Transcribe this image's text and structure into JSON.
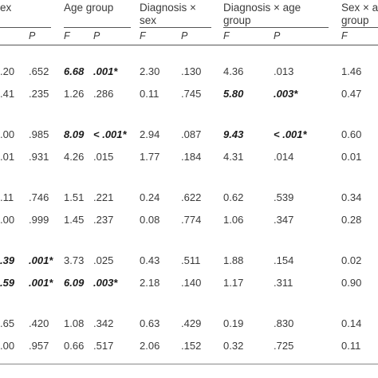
{
  "headers": {
    "sex": "ex",
    "age_group": "Age group",
    "diag_sex_1": "Diagnosis ×",
    "diag_sex_2": "sex",
    "diag_age_1": "Diagnosis × age",
    "diag_age_2": "group",
    "sex_age_1": "Sex × a",
    "sex_age_2": "group"
  },
  "subheaders": {
    "c1": "P",
    "c2": "F",
    "c3": "P",
    "c4": "F",
    "c5": "P",
    "c6": "F",
    "c7": "P",
    "c8": "F"
  },
  "rows": [
    {
      "cells": [
        ".20",
        ".652",
        "6.68",
        ".001*",
        "2.30",
        ".130",
        "4.36",
        ".013",
        "1.46"
      ],
      "bold": [
        2,
        3
      ]
    },
    {
      "cells": [
        ".41",
        ".235",
        "1.26",
        ".286",
        "0.11",
        ".745",
        "5.80",
        ".003*",
        "0.47"
      ],
      "bold": [
        6,
        7
      ]
    },
    {
      "cells": [
        ".00",
        ".985",
        "8.09",
        "< .001*",
        "2.94",
        ".087",
        "9.43",
        "< .001*",
        "0.60"
      ],
      "bold": [
        2,
        3,
        6,
        7
      ]
    },
    {
      "cells": [
        ".01",
        ".931",
        "4.26",
        ".015",
        "1.77",
        ".184",
        "4.31",
        ".014",
        "0.01"
      ],
      "bold": []
    },
    {
      "cells": [
        ".11",
        ".746",
        "1.51",
        ".221",
        "0.24",
        ".622",
        "0.62",
        ".539",
        "0.34"
      ],
      "bold": []
    },
    {
      "cells": [
        ".00",
        ".999",
        "1.45",
        ".237",
        "0.08",
        ".774",
        "1.06",
        ".347",
        "0.28"
      ],
      "bold": []
    },
    {
      "cells": [
        ".39",
        ".001*",
        "3.73",
        ".025",
        "0.43",
        ".511",
        "1.88",
        ".154",
        "0.02"
      ],
      "bold": [
        0,
        1
      ]
    },
    {
      "cells": [
        ".59",
        ".001*",
        "6.09",
        ".003*",
        "2.18",
        ".140",
        "1.17",
        ".311",
        "0.90"
      ],
      "bold": [
        0,
        1,
        2,
        3
      ]
    },
    {
      "cells": [
        ".65",
        ".420",
        "1.08",
        ".342",
        "0.63",
        ".429",
        "0.19",
        ".830",
        "0.14"
      ],
      "bold": []
    },
    {
      "cells": [
        ".00",
        ".957",
        "0.66",
        ".517",
        "2.06",
        ".152",
        "0.32",
        ".725",
        "0.11"
      ],
      "bold": []
    }
  ]
}
